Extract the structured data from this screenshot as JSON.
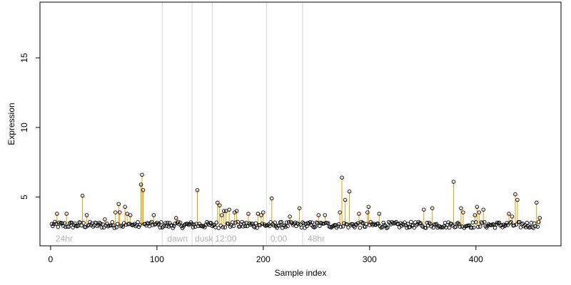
{
  "chart_data": {
    "type": "scatter",
    "xlabel": "Sample index",
    "ylabel": "Expression",
    "xlim": [
      -10,
      480
    ],
    "ylim": [
      1.5,
      19
    ],
    "xticks": [
      0,
      100,
      200,
      300,
      400
    ],
    "yticks": [
      5,
      10,
      15
    ],
    "colors": {
      "stem": "#e69f00",
      "point_stroke": "#000000",
      "region_line": "#d9d9d9",
      "region_label": "#b3b3b3",
      "frame": "#000000"
    },
    "baseline": 3.0,
    "region_boundaries": [
      105,
      133,
      152,
      203,
      237
    ],
    "region_labels": [
      {
        "x": 2,
        "text": "24hr"
      },
      {
        "x": 107,
        "text": "dawn"
      },
      {
        "x": 133,
        "text": "dusk"
      },
      {
        "x": 152,
        "text": "12:00"
      },
      {
        "x": 204,
        "text": "0:00"
      },
      {
        "x": 239,
        "text": "48hr"
      }
    ],
    "spikes": [
      {
        "x": 6,
        "y": 3.8
      },
      {
        "x": 15,
        "y": 3.8
      },
      {
        "x": 30,
        "y": 5.1
      },
      {
        "x": 34,
        "y": 3.7
      },
      {
        "x": 51,
        "y": 3.4
      },
      {
        "x": 61,
        "y": 3.9
      },
      {
        "x": 64,
        "y": 4.5
      },
      {
        "x": 65,
        "y": 3.9
      },
      {
        "x": 70,
        "y": 4.3
      },
      {
        "x": 72,
        "y": 3.8
      },
      {
        "x": 75,
        "y": 3.7
      },
      {
        "x": 85,
        "y": 5.9
      },
      {
        "x": 86,
        "y": 6.6
      },
      {
        "x": 87,
        "y": 5.5
      },
      {
        "x": 97,
        "y": 3.7
      },
      {
        "x": 118,
        "y": 3.5
      },
      {
        "x": 138,
        "y": 5.5
      },
      {
        "x": 157,
        "y": 4.6
      },
      {
        "x": 159,
        "y": 4.4
      },
      {
        "x": 161,
        "y": 3.7
      },
      {
        "x": 163,
        "y": 4.0
      },
      {
        "x": 165,
        "y": 4.0
      },
      {
        "x": 168,
        "y": 4.1
      },
      {
        "x": 173,
        "y": 3.9
      },
      {
        "x": 175,
        "y": 4.0
      },
      {
        "x": 186,
        "y": 3.8
      },
      {
        "x": 195,
        "y": 3.8
      },
      {
        "x": 198,
        "y": 3.7
      },
      {
        "x": 200,
        "y": 3.9
      },
      {
        "x": 208,
        "y": 4.9
      },
      {
        "x": 225,
        "y": 3.6
      },
      {
        "x": 234,
        "y": 4.2
      },
      {
        "x": 252,
        "y": 3.7
      },
      {
        "x": 258,
        "y": 3.7
      },
      {
        "x": 272,
        "y": 3.9
      },
      {
        "x": 274,
        "y": 6.4
      },
      {
        "x": 277,
        "y": 4.8
      },
      {
        "x": 281,
        "y": 5.4
      },
      {
        "x": 290,
        "y": 3.8
      },
      {
        "x": 298,
        "y": 3.9
      },
      {
        "x": 299,
        "y": 4.3
      },
      {
        "x": 309,
        "y": 3.8
      },
      {
        "x": 351,
        "y": 4.1
      },
      {
        "x": 359,
        "y": 4.2
      },
      {
        "x": 379,
        "y": 6.1
      },
      {
        "x": 386,
        "y": 4.2
      },
      {
        "x": 388,
        "y": 3.9
      },
      {
        "x": 399,
        "y": 3.7
      },
      {
        "x": 401,
        "y": 4.3
      },
      {
        "x": 403,
        "y": 3.9
      },
      {
        "x": 407,
        "y": 4.1
      },
      {
        "x": 431,
        "y": 3.8
      },
      {
        "x": 434,
        "y": 3.6
      },
      {
        "x": 437,
        "y": 5.2
      },
      {
        "x": 439,
        "y": 4.8
      },
      {
        "x": 457,
        "y": 4.6
      },
      {
        "x": 460,
        "y": 3.5
      }
    ],
    "n_samples": 460
  }
}
